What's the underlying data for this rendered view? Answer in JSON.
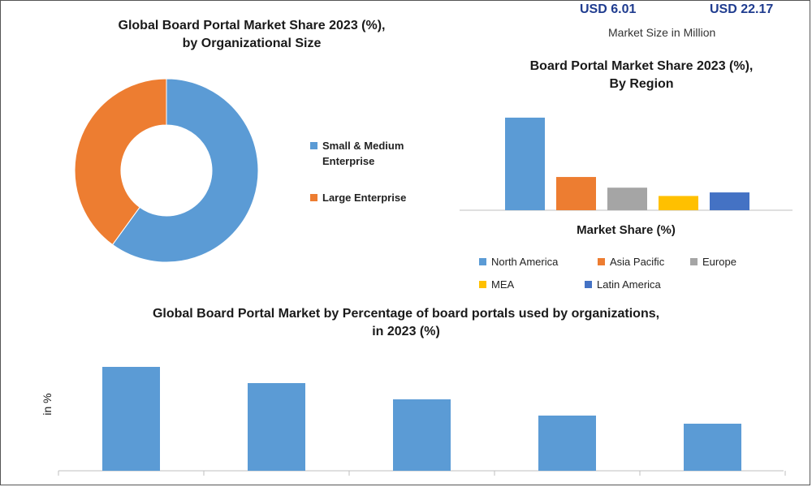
{
  "header": {
    "usd_left": "USD 6.01",
    "usd_right": "USD 22.17",
    "market_size_label": "Market Size in Million"
  },
  "colors": {
    "blue": "#5b9bd5",
    "orange": "#ed7d31",
    "gray": "#a5a5a5",
    "yellow": "#ffc000",
    "dark_blue": "#4472c4",
    "axis": "#bfbfbf"
  },
  "chart_data": [
    {
      "type": "donut",
      "title_line1": "Global Board Portal Market Share 2023 (%),",
      "title_line2": "by Organizational Size",
      "categories": [
        "Small & Medium Enterprise",
        "Large Enterprise"
      ],
      "legend_lines": [
        [
          "Small & Medium",
          "Enterprise"
        ],
        [
          "Large Enterprise"
        ]
      ],
      "values": [
        60,
        40
      ],
      "colors": [
        "#5b9bd5",
        "#ed7d31"
      ]
    },
    {
      "type": "bar",
      "title_line1": "Board Portal Market Share 2023 (%),",
      "title_line2": "By Region",
      "xlabel": "Market Share (%)",
      "categories": [
        "North America",
        "Asia Pacific",
        "Europe",
        "MEA",
        "Latin America"
      ],
      "values": [
        39,
        14,
        9.5,
        6,
        7.5
      ],
      "colors": [
        "#5b9bd5",
        "#ed7d31",
        "#a5a5a5",
        "#ffc000",
        "#4472c4"
      ],
      "ylim": [
        0,
        40
      ]
    },
    {
      "type": "bar",
      "title_line1": "Global Board Portal Market by Percentage of board portals used by organizations,",
      "title_line2": "in 2023 (%)",
      "ylabel": "in %",
      "values": [
        64,
        54,
        44,
        34,
        29
      ],
      "color": "#5b9bd5",
      "ylim": [
        0,
        70
      ]
    }
  ]
}
